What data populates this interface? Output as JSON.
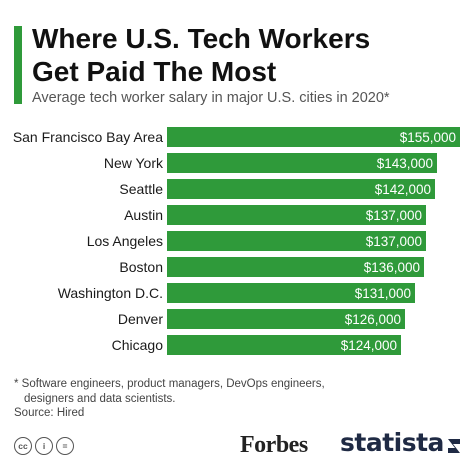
{
  "header": {
    "title_line1": "Where U.S. Tech Workers",
    "title_line2": "Get Paid The Most",
    "subtitle": "Average tech worker salary in major U.S. cities in 2020*"
  },
  "chart_data": {
    "type": "bar",
    "orientation": "horizontal",
    "categories": [
      "San Francisco Bay Area",
      "New York",
      "Seattle",
      "Austin",
      "Los Angeles",
      "Boston",
      "Washington D.C.",
      "Denver",
      "Chicago"
    ],
    "values": [
      155000,
      143000,
      142000,
      137000,
      137000,
      136000,
      131000,
      126000,
      124000
    ],
    "value_labels": [
      "$155,000",
      "$143,000",
      "$142,000",
      "$137,000",
      "$137,000",
      "$136,000",
      "$131,000",
      "$126,000",
      "$124,000"
    ],
    "xlim": [
      0,
      155000
    ],
    "grid": false,
    "bar_color": "#2f9a3a"
  },
  "footer": {
    "footnote_line1": "* Software engineers, product managers, DevOps engineers,",
    "footnote_line2": "designers and data scientists.",
    "source": "Source: Hired",
    "cc_icons": [
      "cc-icon",
      "by-icon",
      "nd-icon"
    ],
    "cc_glyphs": [
      "cc",
      "i",
      "="
    ],
    "publisher_logo": "Forbes",
    "brand_logo": "statista"
  },
  "colors": {
    "accent": "#2f9a3a",
    "bar": "#2f9a3a",
    "brand_dark": "#1f2a44"
  }
}
